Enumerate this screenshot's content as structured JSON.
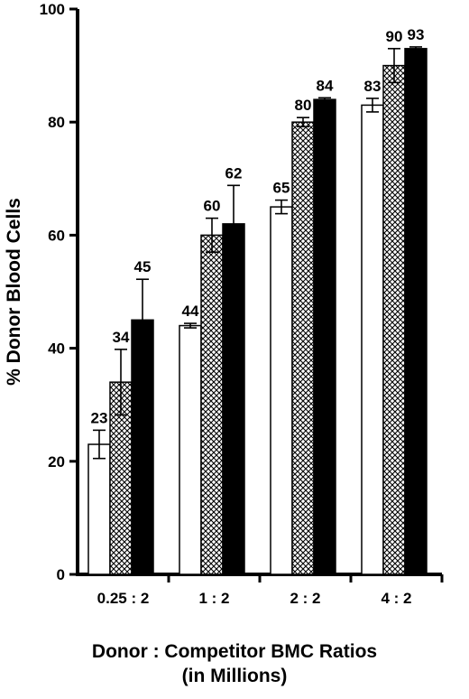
{
  "chart_data": {
    "type": "bar",
    "title": "",
    "xlabel": [
      "Donor : Competitor BMC Ratios",
      "(in Millions)"
    ],
    "ylabel": "% Donor Blood Cells",
    "ylim": [
      0,
      100
    ],
    "yticks": [
      0,
      20,
      40,
      60,
      80,
      100
    ],
    "categories": [
      "0.25 : 2",
      "1 : 2",
      "2 : 2",
      "4 : 2"
    ],
    "grid": false,
    "legend": "none",
    "series": [
      {
        "fill": "white",
        "values": [
          23,
          44,
          65,
          83
        ],
        "labels": [
          "23",
          "44",
          "65",
          "83"
        ],
        "errors": [
          2.5,
          0.4,
          1.2,
          1.2
        ]
      },
      {
        "fill": "crosshatch",
        "values": [
          34,
          60,
          80,
          90
        ],
        "labels": [
          "34",
          "60",
          "80",
          "90"
        ],
        "errors": [
          5.8,
          3.0,
          0.8,
          3.0
        ]
      },
      {
        "fill": "black",
        "values": [
          45,
          62,
          84,
          93
        ],
        "labels": [
          "45",
          "62",
          "84",
          "93"
        ],
        "errors": [
          7.2,
          6.8,
          0.3,
          0.3
        ]
      }
    ]
  }
}
